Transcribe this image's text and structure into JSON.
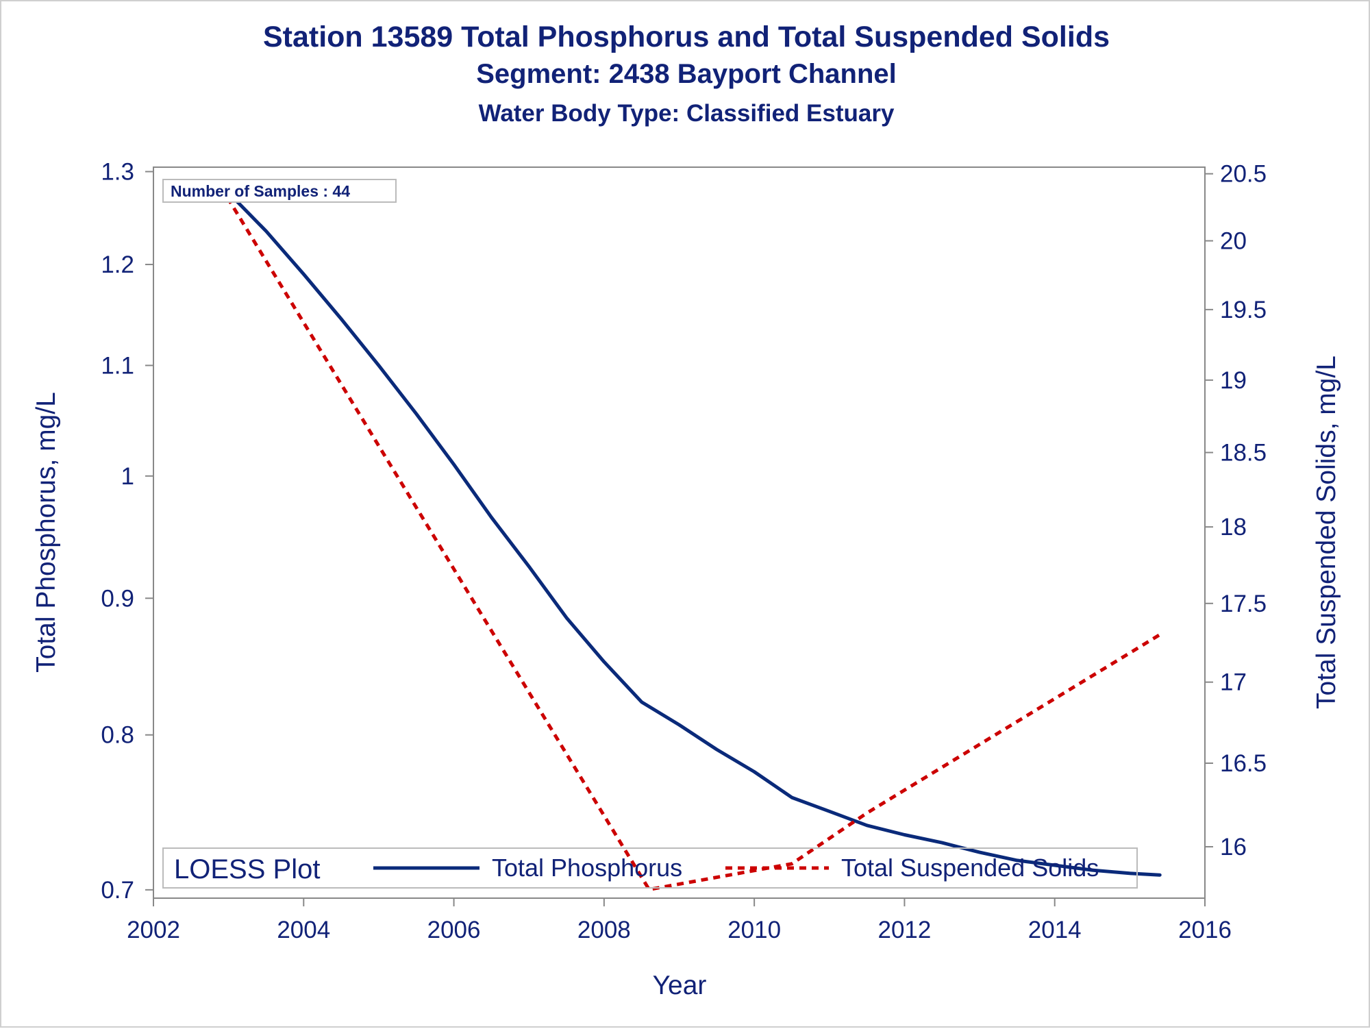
{
  "chart": {
    "title": "Station 13589  Total Phosphorus and Total Suspended Solids",
    "subtitle": "Segment: 2438  Bayport Channel",
    "subtitle2": "Water Body Type: Classified Estuary",
    "xlabel": "Year",
    "y1label": "Total Phosphorus, mg/L",
    "y2label": "Total Suspended Solids, mg/L",
    "sample_note": "Number of Samples : 44",
    "legend_title": "LOESS Plot",
    "colors": {
      "text": "#112277",
      "series1": "#0a2a7a",
      "series2": "#cc0000",
      "axis": "#888888"
    }
  },
  "chart_data": {
    "type": "line",
    "title": "Station 13589  Total Phosphorus and Total Suspended Solids",
    "subtitle": "Segment: 2438  Bayport Channel",
    "xlabel": "Year",
    "ylabel": "Total Phosphorus, mg/L",
    "y2label": "Total Suspended Solids, mg/L",
    "xlim": [
      2002,
      2016
    ],
    "ylim": [
      0.695,
      1.305
    ],
    "y2lim": [
      15.7,
      20.55
    ],
    "y_scale": "log",
    "y2_scale": "log",
    "xticks": [
      2002,
      2004,
      2006,
      2008,
      2010,
      2012,
      2014,
      2016
    ],
    "yticks": [
      0.7,
      0.8,
      0.9,
      1,
      1.1,
      1.2,
      1.3
    ],
    "y2ticks": [
      16,
      16.5,
      17,
      17.5,
      18,
      18.5,
      19,
      19.5,
      20,
      20.5
    ],
    "legend_position": "bottom",
    "grid": false,
    "series": [
      {
        "name": "Total Phosphorus",
        "axis": "left",
        "style": "solid",
        "x": [
          2002.9,
          2003.5,
          2004.0,
          2004.5,
          2005.0,
          2005.5,
          2006.0,
          2006.5,
          2007.0,
          2007.5,
          2008.0,
          2008.5,
          2009.0,
          2009.5,
          2010.0,
          2010.5,
          2011.0,
          2011.5,
          2012.0,
          2012.5,
          2013.0,
          2013.5,
          2014.0,
          2014.5,
          2015.0,
          2015.4
        ],
        "values": [
          1.285,
          1.235,
          1.19,
          1.145,
          1.1,
          1.055,
          1.01,
          0.965,
          0.925,
          0.885,
          0.852,
          0.823,
          0.807,
          0.79,
          0.775,
          0.758,
          0.749,
          0.74,
          0.734,
          0.729,
          0.723,
          0.718,
          0.715,
          0.712,
          0.71,
          0.709
        ]
      },
      {
        "name": "Total Suspended Solids",
        "axis": "right",
        "style": "dashed",
        "x": [
          2002.9,
          2008.6,
          2010.5,
          2011.5,
          2015.4
        ],
        "values": [
          20.4,
          15.75,
          15.9,
          16.2,
          17.3
        ]
      }
    ]
  }
}
